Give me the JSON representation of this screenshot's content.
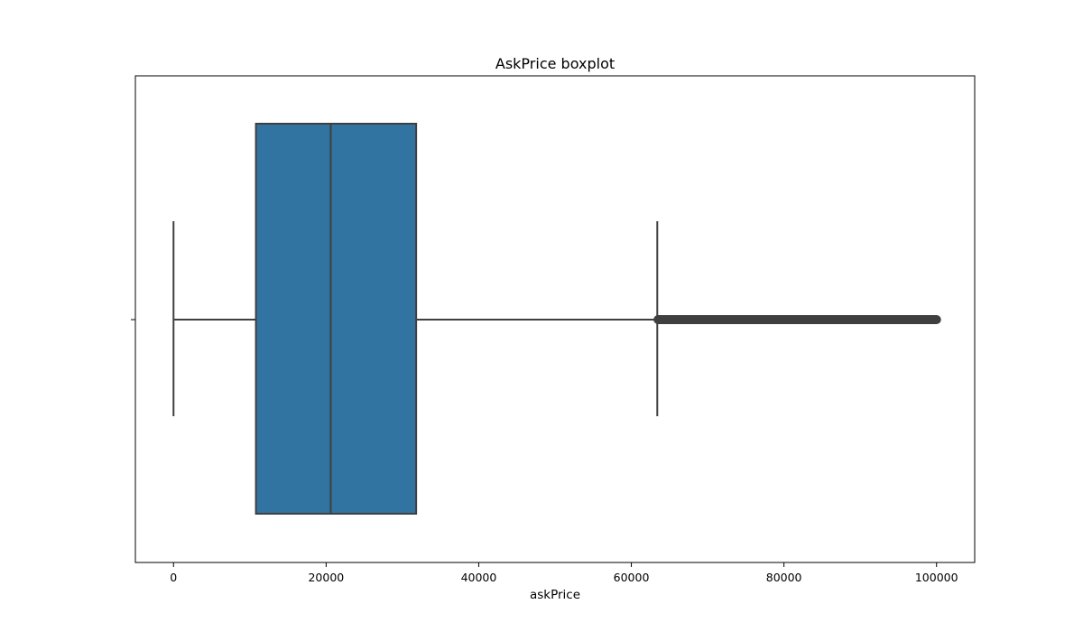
{
  "chart_data": {
    "type": "boxplot",
    "title": "AskPrice boxplot",
    "xlabel": "askPrice",
    "ylabel": "",
    "orientation": "horizontal",
    "xlim": [
      -5000,
      105000
    ],
    "xticks": [
      0,
      20000,
      40000,
      60000,
      80000,
      100000
    ],
    "xtick_labels": [
      "0",
      "20000",
      "40000",
      "60000",
      "80000",
      "100000"
    ],
    "grid": false,
    "legend": "none",
    "box": {
      "whisker_low": 0,
      "q1": 10800,
      "median": 20600,
      "q3": 31800,
      "whisker_high": 63400,
      "outliers_range": [
        63500,
        100000
      ]
    },
    "colors": {
      "box_fill": "#3274a1",
      "line": "#3f3f3f",
      "outliers": "#3f3f3f"
    }
  }
}
